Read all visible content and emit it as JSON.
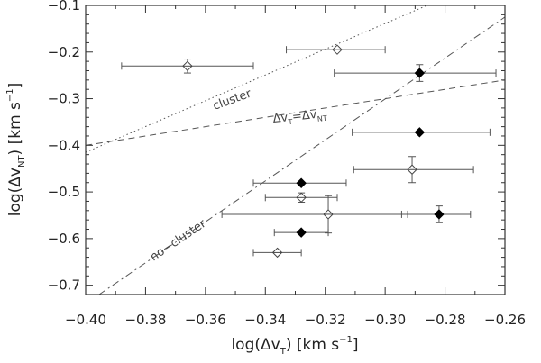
{
  "chart_data": {
    "type": "scatter",
    "xlim": [
      -0.4,
      -0.26
    ],
    "ylim": [
      -0.72,
      -0.1
    ],
    "x_ticks": [
      -0.4,
      -0.38,
      -0.36,
      -0.34,
      -0.32,
      -0.3,
      -0.28,
      -0.26
    ],
    "x_tick_labels": [
      "−0.40",
      "−0.38",
      "−0.36",
      "−0.34",
      "−0.32",
      "−0.30",
      "−0.28",
      "−0.26"
    ],
    "y_ticks": [
      -0.7,
      -0.6,
      -0.5,
      -0.4,
      -0.3,
      -0.2,
      -0.1
    ],
    "y_tick_labels": [
      "−0.7",
      "−0.6",
      "−0.5",
      "−0.4",
      "−0.3",
      "−0.2",
      "−0.1"
    ],
    "xlabel": {
      "prefix": "log(Δv",
      "sub": "T",
      "suffix": ")  [km s",
      "sup": "−1",
      "end": "]"
    },
    "ylabel": {
      "prefix": "log(Δv",
      "sub": "NT",
      "suffix": ")  [km s",
      "sup": "−1",
      "end": "]"
    },
    "grid": false,
    "series": [
      {
        "marker": "filled-diamond",
        "points": [
          {
            "x": -0.2885,
            "y": -0.245,
            "xerr": [
              0.0285,
              0.0255
            ],
            "yerr": [
              0.018,
              0.018
            ]
          },
          {
            "x": -0.2885,
            "y": -0.372,
            "xerr": [
              0.0225,
              0.0235
            ],
            "yerr": [
              0.0,
              0.0
            ]
          },
          {
            "x": -0.328,
            "y": -0.481,
            "xerr": [
              0.016,
              0.015
            ],
            "yerr": [
              0.0,
              0.0
            ]
          },
          {
            "x": -0.282,
            "y": -0.548,
            "xerr": [
              0.0125,
              0.0105
            ],
            "yerr": [
              0.018,
              0.018
            ]
          },
          {
            "x": -0.328,
            "y": -0.587,
            "xerr": [
              0.009,
              0.009
            ],
            "yerr": [
              0.0,
              0.0
            ]
          }
        ]
      },
      {
        "marker": "open-diamond",
        "points": [
          {
            "x": -0.366,
            "y": -0.23,
            "xerr": [
              0.022,
              0.022
            ],
            "yerr": [
              0.015,
              0.015
            ]
          },
          {
            "x": -0.316,
            "y": -0.195,
            "xerr": [
              0.017,
              0.016
            ],
            "yerr": [
              0.0,
              0.0
            ]
          },
          {
            "x": -0.291,
            "y": -0.452,
            "xerr": [
              0.0195,
              0.0205
            ],
            "yerr": [
              0.028,
              0.028
            ]
          },
          {
            "x": -0.328,
            "y": -0.512,
            "xerr": [
              0.012,
              0.012
            ],
            "yerr": [
              0.01,
              0.01
            ]
          },
          {
            "x": -0.319,
            "y": -0.548,
            "xerr": [
              0.0355,
              0.0265
            ],
            "yerr": [
              0.04,
              0.04
            ]
          },
          {
            "x": -0.336,
            "y": -0.63,
            "xerr": [
              0.008,
              0.008
            ],
            "yerr": [
              0.0,
              0.0
            ]
          }
        ]
      }
    ],
    "lines": [
      {
        "style": "dotted",
        "label": "cluster",
        "points": [
          [
            -0.4,
            -0.415
          ],
          [
            -0.286,
            -0.1
          ]
        ]
      },
      {
        "style": "dashed",
        "label": "equality",
        "points": [
          [
            -0.4,
            -0.4
          ],
          [
            -0.26,
            -0.26
          ]
        ]
      },
      {
        "style": "dashdot",
        "label": "no-cluster",
        "points": [
          [
            -0.3955,
            -0.72
          ],
          [
            -0.26,
            -0.125
          ]
        ]
      }
    ],
    "annotations": {
      "cluster": "cluster",
      "no_cluster": "no−cluster",
      "equality": {
        "a": "Δv",
        "a_sub": "T",
        "eq": "=Δv",
        "b_sub": "NT"
      }
    }
  }
}
